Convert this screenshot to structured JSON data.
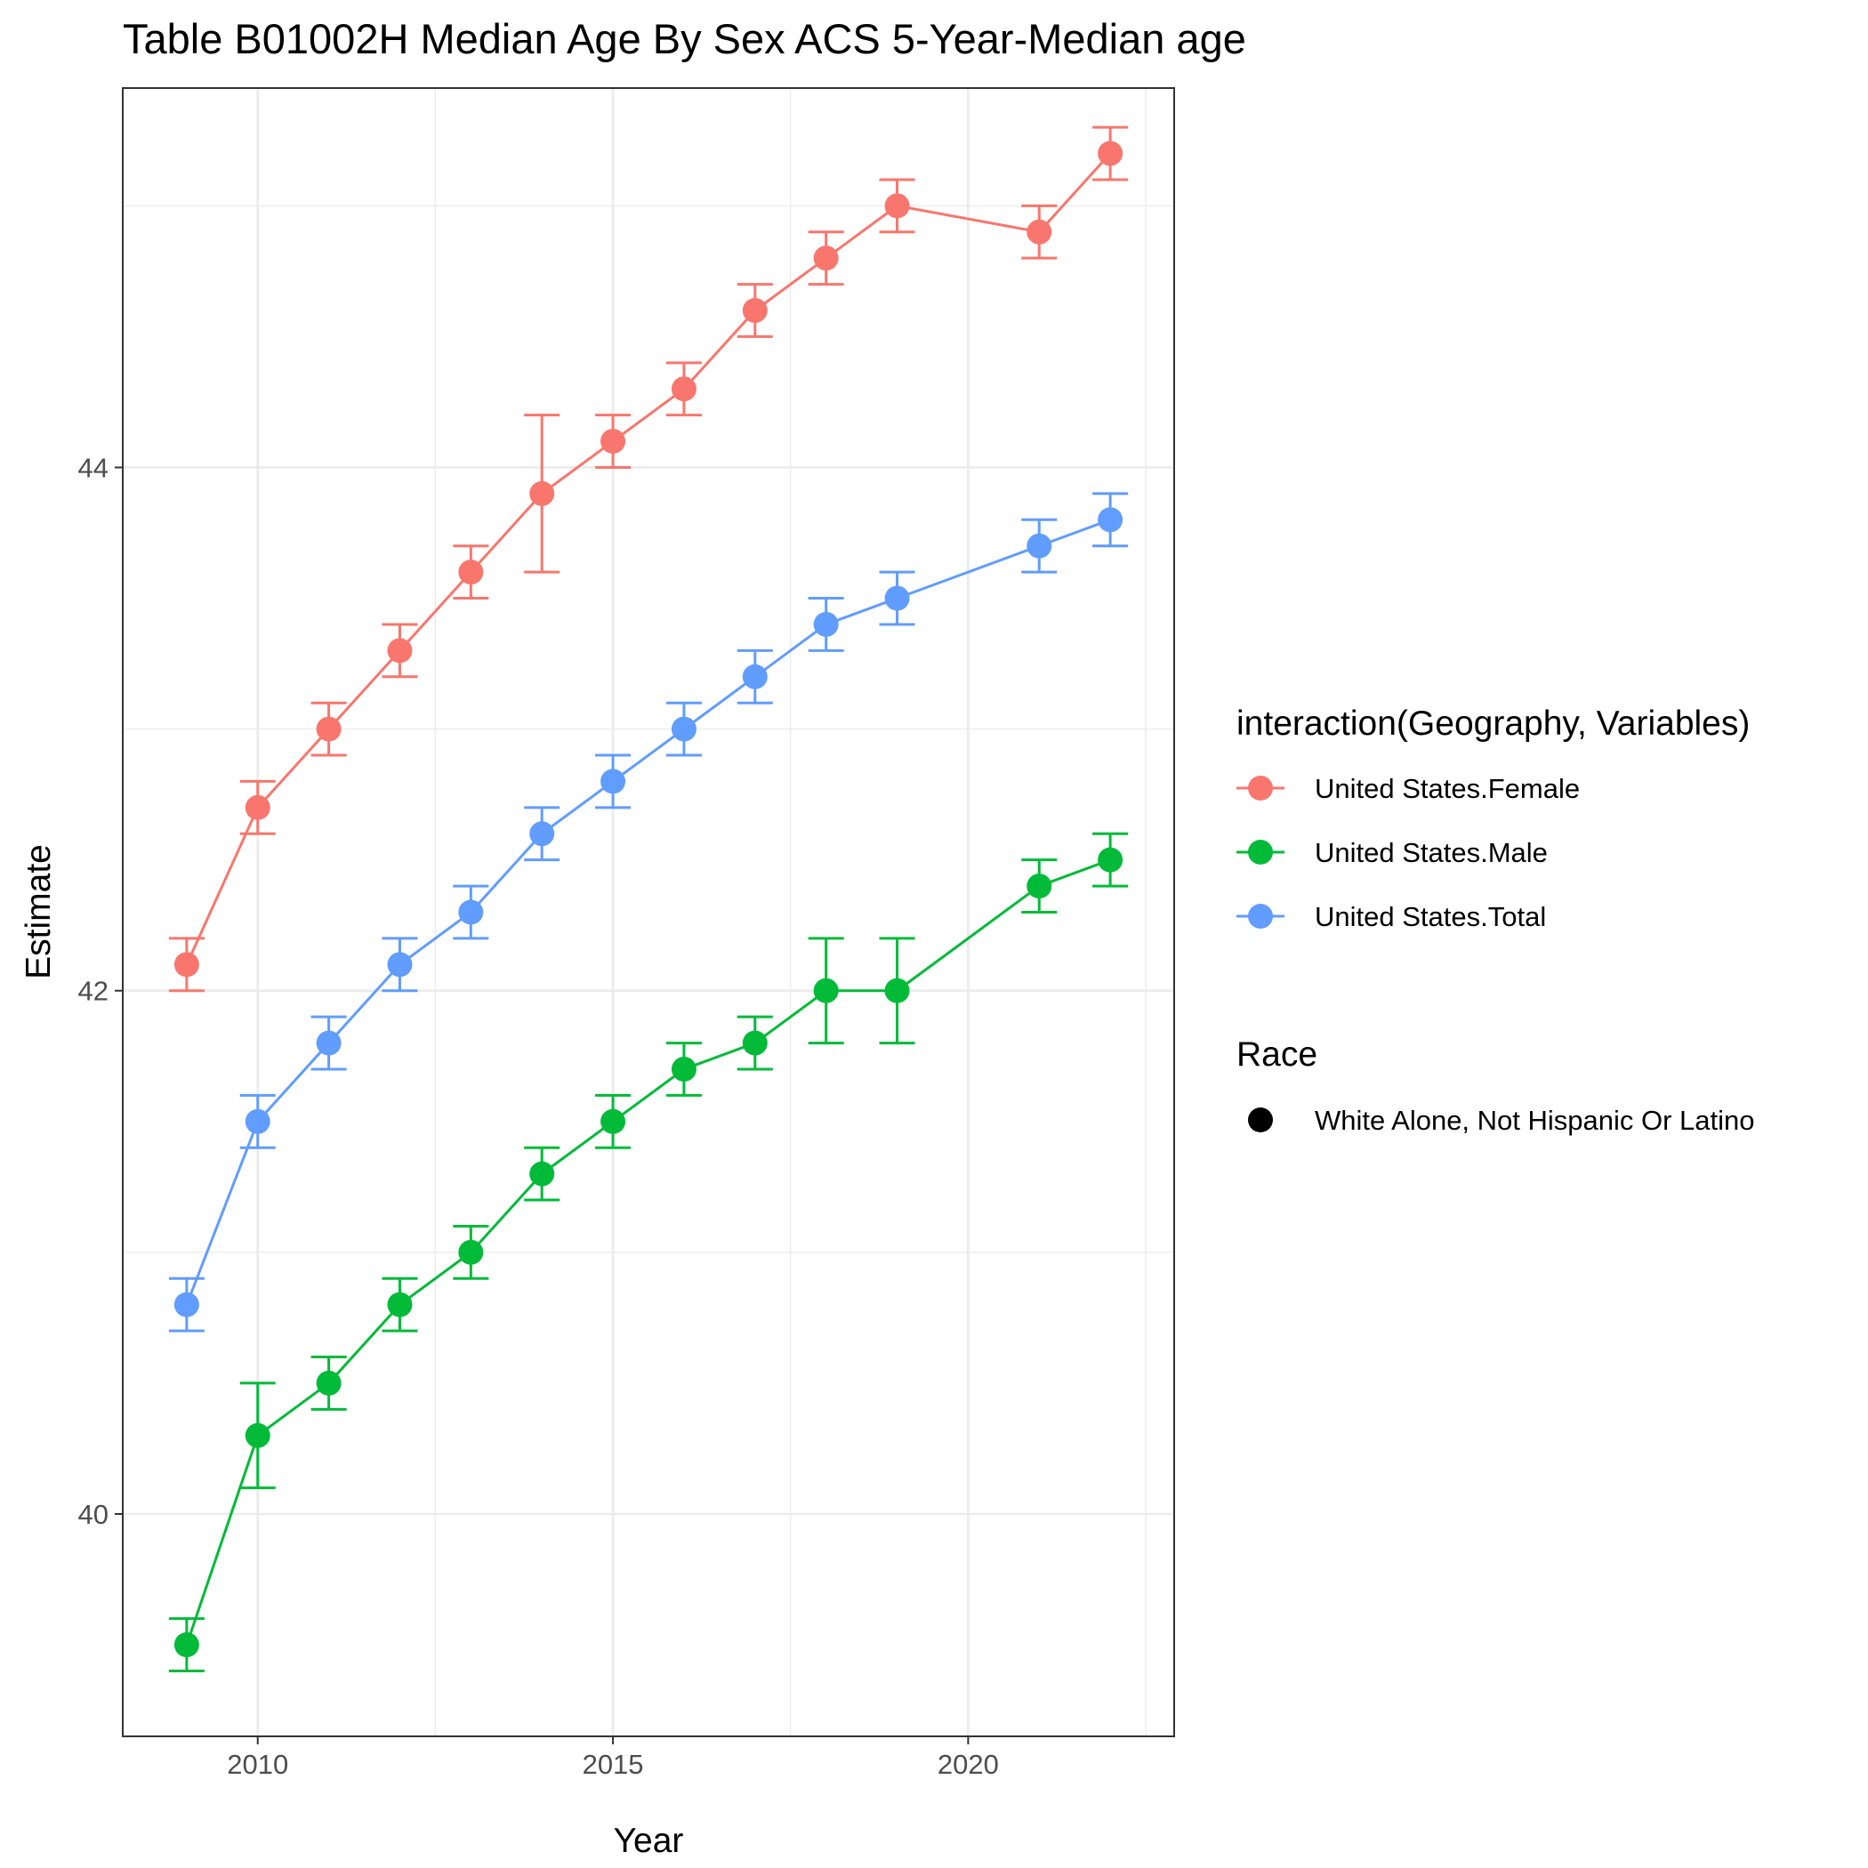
{
  "chart_data": {
    "type": "line",
    "title": "Table B01002H Median Age By Sex ACS 5-Year-Median age",
    "xlabel": "Year",
    "ylabel": "Estimate",
    "xlim": [
      2008.1,
      2022.9
    ],
    "ylim": [
      39.15,
      45.45
    ],
    "x_ticks": [
      2010,
      2015,
      2020
    ],
    "x_tick_labels": [
      "2010",
      "2015",
      "2020"
    ],
    "y_ticks": [
      40,
      42,
      44
    ],
    "y_tick_labels": [
      "40",
      "42",
      "44"
    ],
    "grid": true,
    "legend_position": "right",
    "legend": {
      "color_title": "interaction(Geography, Variables)",
      "shape_title": "Race",
      "shape_entries": [
        "White Alone, Not Hispanic Or Latino"
      ]
    },
    "series": [
      {
        "name": "United States.Female",
        "color": "#F8766D",
        "x": [
          2009,
          2010,
          2011,
          2012,
          2013,
          2014,
          2015,
          2016,
          2017,
          2018,
          2019,
          2021,
          2022
        ],
        "values": [
          42.1,
          42.7,
          43.0,
          43.3,
          43.6,
          43.9,
          44.1,
          44.3,
          44.6,
          44.8,
          45.0,
          44.9,
          45.2
        ],
        "lower": [
          42.0,
          42.6,
          42.9,
          43.2,
          43.5,
          43.6,
          44.0,
          44.2,
          44.5,
          44.7,
          44.9,
          44.8,
          45.1
        ],
        "upper": [
          42.2,
          42.8,
          43.1,
          43.4,
          43.7,
          44.2,
          44.2,
          44.4,
          44.7,
          44.9,
          45.1,
          45.0,
          45.3
        ]
      },
      {
        "name": "United States.Male",
        "color": "#00BA38",
        "x": [
          2009,
          2010,
          2011,
          2012,
          2013,
          2014,
          2015,
          2016,
          2017,
          2018,
          2019,
          2021,
          2022
        ],
        "values": [
          39.5,
          40.3,
          40.5,
          40.8,
          41.0,
          41.3,
          41.5,
          41.7,
          41.8,
          42.0,
          42.0,
          42.4,
          42.5
        ],
        "lower": [
          39.4,
          40.1,
          40.4,
          40.7,
          40.9,
          41.2,
          41.4,
          41.6,
          41.7,
          41.8,
          41.8,
          42.3,
          42.4
        ],
        "upper": [
          39.6,
          40.5,
          40.6,
          40.9,
          41.1,
          41.4,
          41.6,
          41.8,
          41.9,
          42.2,
          42.2,
          42.5,
          42.6
        ]
      },
      {
        "name": "United States.Total",
        "color": "#619CFF",
        "x": [
          2009,
          2010,
          2011,
          2012,
          2013,
          2014,
          2015,
          2016,
          2017,
          2018,
          2019,
          2021,
          2022
        ],
        "values": [
          40.8,
          41.5,
          41.8,
          42.1,
          42.3,
          42.6,
          42.8,
          43.0,
          43.2,
          43.4,
          43.5,
          43.7,
          43.8
        ],
        "lower": [
          40.7,
          41.4,
          41.7,
          42.0,
          42.2,
          42.5,
          42.7,
          42.9,
          43.1,
          43.3,
          43.4,
          43.6,
          43.7
        ],
        "upper": [
          40.9,
          41.6,
          41.9,
          42.2,
          42.4,
          42.7,
          42.9,
          43.1,
          43.3,
          43.5,
          43.6,
          43.8,
          43.9
        ]
      }
    ]
  }
}
